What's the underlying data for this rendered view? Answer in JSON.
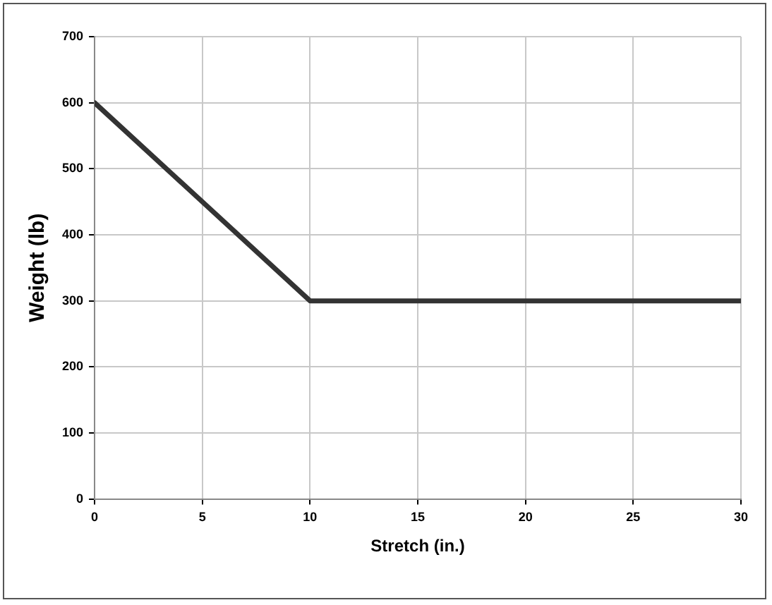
{
  "chart_data": {
    "type": "line",
    "xlabel": "Stretch (in.)",
    "ylabel": "Weight (lb)",
    "x": [
      0,
      10,
      30
    ],
    "series": [
      {
        "color": "#333333",
        "values": [
          600,
          300,
          300
        ]
      }
    ],
    "xlim": [
      0,
      30
    ],
    "xticks": [
      0,
      5,
      10,
      15,
      20,
      25,
      30
    ],
    "ylim": [
      0,
      700
    ],
    "yticks": [
      0,
      100,
      200,
      300,
      400,
      500,
      600,
      700
    ],
    "grid": true,
    "legend": false,
    "marker": "none",
    "line_style": "solid"
  }
}
